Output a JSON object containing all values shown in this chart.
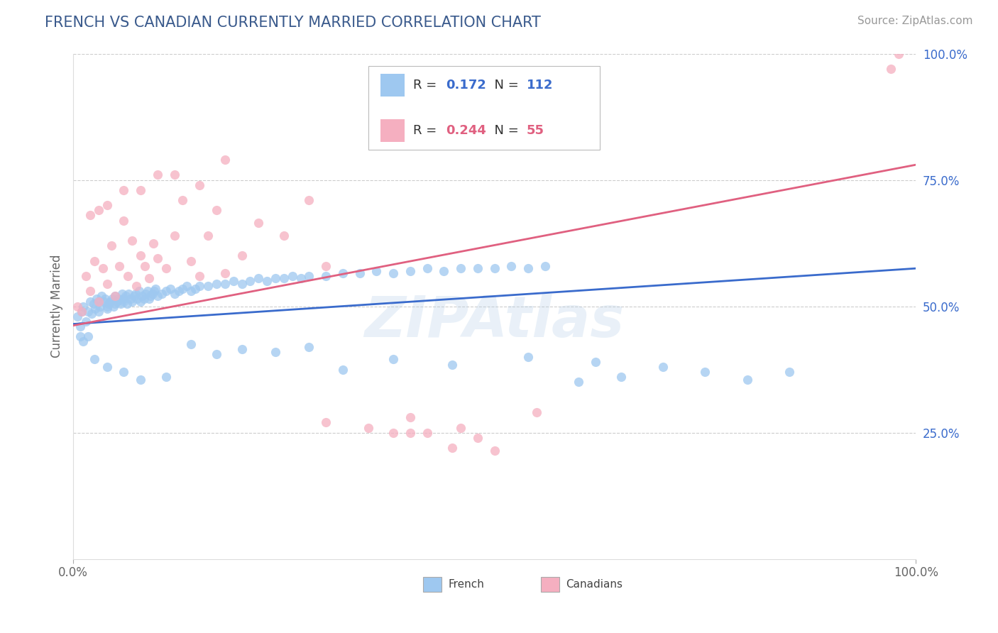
{
  "title": "FRENCH VS CANADIAN CURRENTLY MARRIED CORRELATION CHART",
  "source_text": "Source: ZipAtlas.com",
  "ylabel": "Currently Married",
  "xlim": [
    0.0,
    1.0
  ],
  "ylim": [
    0.0,
    1.0
  ],
  "x_tick_labels": [
    "0.0%",
    "100.0%"
  ],
  "y_tick_labels": [
    "25.0%",
    "50.0%",
    "75.0%",
    "100.0%"
  ],
  "y_tick_positions": [
    0.25,
    0.5,
    0.75,
    1.0
  ],
  "title_color": "#3a5a8c",
  "title_fontsize": 15,
  "source_fontsize": 11,
  "axis_label_fontsize": 12,
  "tick_fontsize": 12,
  "french_color": "#9ec8f0",
  "canadian_color": "#f5afc0",
  "french_line_color": "#3a6bcc",
  "canadian_line_color": "#e06080",
  "french_R": 0.172,
  "french_N": 112,
  "canadian_R": 0.244,
  "canadian_N": 55,
  "watermark": "ZIPAtlas",
  "background_color": "#ffffff",
  "grid_color": "#cccccc",
  "french_scatter_x": [
    0.005,
    0.008,
    0.01,
    0.012,
    0.015,
    0.018,
    0.02,
    0.022,
    0.024,
    0.026,
    0.028,
    0.03,
    0.03,
    0.032,
    0.034,
    0.036,
    0.038,
    0.04,
    0.04,
    0.042,
    0.044,
    0.046,
    0.048,
    0.05,
    0.05,
    0.052,
    0.054,
    0.056,
    0.058,
    0.06,
    0.06,
    0.062,
    0.064,
    0.066,
    0.068,
    0.07,
    0.072,
    0.074,
    0.076,
    0.078,
    0.08,
    0.082,
    0.084,
    0.086,
    0.088,
    0.09,
    0.092,
    0.094,
    0.096,
    0.098,
    0.1,
    0.105,
    0.11,
    0.115,
    0.12,
    0.125,
    0.13,
    0.135,
    0.14,
    0.145,
    0.15,
    0.16,
    0.17,
    0.18,
    0.19,
    0.2,
    0.21,
    0.22,
    0.23,
    0.24,
    0.25,
    0.26,
    0.27,
    0.28,
    0.3,
    0.32,
    0.34,
    0.36,
    0.38,
    0.4,
    0.42,
    0.44,
    0.46,
    0.48,
    0.5,
    0.52,
    0.54,
    0.56,
    0.6,
    0.65,
    0.7,
    0.75,
    0.8,
    0.85,
    0.54,
    0.62,
    0.45,
    0.38,
    0.32,
    0.28,
    0.24,
    0.2,
    0.17,
    0.14,
    0.11,
    0.08,
    0.06,
    0.04,
    0.025,
    0.018,
    0.012,
    0.008
  ],
  "french_scatter_y": [
    0.48,
    0.46,
    0.49,
    0.5,
    0.47,
    0.49,
    0.51,
    0.485,
    0.505,
    0.495,
    0.515,
    0.49,
    0.51,
    0.5,
    0.52,
    0.51,
    0.515,
    0.495,
    0.5,
    0.505,
    0.51,
    0.515,
    0.5,
    0.505,
    0.52,
    0.51,
    0.515,
    0.505,
    0.525,
    0.51,
    0.515,
    0.52,
    0.505,
    0.525,
    0.515,
    0.51,
    0.52,
    0.525,
    0.515,
    0.53,
    0.51,
    0.52,
    0.515,
    0.525,
    0.53,
    0.515,
    0.52,
    0.525,
    0.53,
    0.535,
    0.52,
    0.525,
    0.53,
    0.535,
    0.525,
    0.53,
    0.535,
    0.54,
    0.53,
    0.535,
    0.54,
    0.54,
    0.545,
    0.545,
    0.55,
    0.545,
    0.55,
    0.555,
    0.55,
    0.555,
    0.555,
    0.56,
    0.555,
    0.56,
    0.56,
    0.565,
    0.565,
    0.57,
    0.565,
    0.57,
    0.575,
    0.57,
    0.575,
    0.575,
    0.575,
    0.58,
    0.575,
    0.58,
    0.35,
    0.36,
    0.38,
    0.37,
    0.355,
    0.37,
    0.4,
    0.39,
    0.385,
    0.395,
    0.375,
    0.42,
    0.41,
    0.415,
    0.405,
    0.425,
    0.36,
    0.355,
    0.37,
    0.38,
    0.395,
    0.44,
    0.43,
    0.44
  ],
  "canadian_scatter_x": [
    0.005,
    0.01,
    0.015,
    0.02,
    0.025,
    0.03,
    0.035,
    0.04,
    0.045,
    0.05,
    0.055,
    0.06,
    0.065,
    0.07,
    0.075,
    0.08,
    0.085,
    0.09,
    0.095,
    0.1,
    0.11,
    0.12,
    0.13,
    0.14,
    0.15,
    0.16,
    0.17,
    0.18,
    0.2,
    0.22,
    0.25,
    0.28,
    0.3,
    0.12,
    0.15,
    0.18,
    0.1,
    0.08,
    0.06,
    0.04,
    0.03,
    0.02,
    0.4,
    0.45,
    0.5,
    0.55,
    0.4,
    0.42,
    0.46,
    0.48,
    0.35,
    0.38,
    0.3,
    0.98,
    0.97
  ],
  "canadian_scatter_y": [
    0.5,
    0.49,
    0.56,
    0.53,
    0.59,
    0.51,
    0.575,
    0.545,
    0.62,
    0.52,
    0.58,
    0.67,
    0.56,
    0.63,
    0.54,
    0.6,
    0.58,
    0.555,
    0.625,
    0.595,
    0.575,
    0.64,
    0.71,
    0.59,
    0.56,
    0.64,
    0.69,
    0.565,
    0.6,
    0.665,
    0.64,
    0.71,
    0.58,
    0.76,
    0.74,
    0.79,
    0.76,
    0.73,
    0.73,
    0.7,
    0.69,
    0.68,
    0.25,
    0.22,
    0.215,
    0.29,
    0.28,
    0.25,
    0.26,
    0.24,
    0.26,
    0.25,
    0.27,
    1.0,
    0.97
  ]
}
